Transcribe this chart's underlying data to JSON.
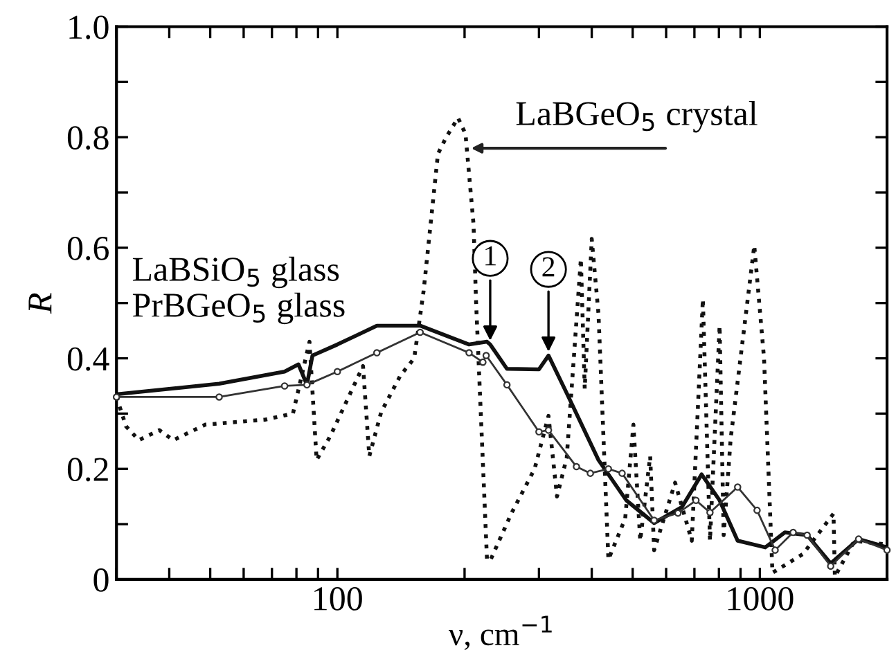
{
  "chart_data": {
    "type": "line",
    "xlabel": "ν, cm$^{−1}$",
    "ylabel": "R",
    "log": "x",
    "grid": false,
    "legend": false,
    "xlim": [
      30,
      2000
    ],
    "ylim": [
      0,
      1.0
    ],
    "xticks": [
      {
        "value": 30,
        "label": null
      },
      {
        "value": 40,
        "label": null
      },
      {
        "value": 50,
        "label": null
      },
      {
        "value": 60,
        "label": null
      },
      {
        "value": 70,
        "label": null
      },
      {
        "value": 80,
        "label": null
      },
      {
        "value": 90,
        "label": null
      },
      100,
      {
        "value": 200,
        "label": null
      },
      {
        "value": 300,
        "label": null
      },
      {
        "value": 400,
        "label": null
      },
      {
        "value": 500,
        "label": null
      },
      {
        "value": 600,
        "label": null
      },
      {
        "value": 700,
        "label": null
      },
      {
        "value": 800,
        "label": null
      },
      {
        "value": 900,
        "label": null
      },
      1000,
      {
        "value": 2000,
        "label": null
      }
    ],
    "yticks": [
      {
        "value": 0,
        "label": "0"
      },
      {
        "value": 0.1,
        "label": null
      },
      0.2,
      {
        "value": 0.3,
        "label": null
      },
      0.4,
      {
        "value": 0.5,
        "label": null
      },
      0.6,
      {
        "value": 0.7,
        "label": null
      },
      0.8,
      {
        "value": 0.9,
        "label": null
      },
      {
        "value": 1.0,
        "label": "1.0"
      }
    ],
    "annotations": [
      "LaBSiO$_{5}$ glass",
      "PrBGeO$_{5}$ glass",
      {
        "text": "LaBGeO$_{5}$ crystal",
        "x": 203,
        "y": 0.78
      },
      {
        "text": "1",
        "x": 230,
        "y": 0.425
      },
      {
        "text": "2",
        "x": 316,
        "y": 0.405
      }
    ],
    "series": [
      {
        "color": "#111111",
        "marker": "none",
        "line_style": "solid",
        "x": [
          30,
          52.5,
          75,
          80.9,
          84.7,
          87.3,
          100,
          124,
          157,
          205,
          226,
          230,
          252,
          300,
          316,
          349,
          415,
          483,
          562,
          654,
          728,
          803,
          886,
          1030,
          1146,
          1294,
          1471,
          1713,
          2000
        ],
        "values": [
          0.335,
          0.354,
          0.376,
          0.389,
          0.352,
          0.405,
          0.425,
          0.459,
          0.459,
          0.425,
          0.43,
          0.425,
          0.381,
          0.38,
          0.405,
          0.337,
          0.216,
          0.143,
          0.102,
          0.131,
          0.19,
          0.143,
          0.07,
          0.058,
          0.085,
          0.08,
          0.029,
          0.073,
          0.058
        ]
      },
      {
        "color": "#333333",
        "marker": "circle",
        "line_style": "solid",
        "x": [
          30,
          52.5,
          75,
          84.7,
          100,
          124,
          157,
          205,
          221,
          225,
          252,
          300,
          316,
          368,
          397,
          438,
          472,
          562,
          640,
          706,
          762,
          886,
          985,
          1087,
          1199,
          1294,
          1471,
          1713,
          2000
        ],
        "values": [
          0.33,
          0.33,
          0.35,
          0.352,
          0.376,
          0.41,
          0.447,
          0.41,
          0.393,
          0.405,
          0.352,
          0.267,
          0.27,
          0.204,
          0.192,
          0.2,
          0.192,
          0.107,
          0.12,
          0.143,
          0.121,
          0.167,
          0.125,
          0.053,
          0.085,
          0.08,
          0.024,
          0.073,
          0.053
        ]
      },
      {
        "color": "#111111",
        "marker": "none",
        "line_style": "dotted",
        "x": [
          30,
          31.6,
          33.9,
          37.9,
          40.9,
          48.7,
          67.4,
          78.5,
          85.9,
          89.3,
          96.3,
          106,
          115,
          119,
          127,
          141,
          152,
          160,
          173,
          181,
          193,
          201,
          210,
          213,
          226,
          230,
          258,
          293,
          316,
          331,
          349,
          377,
          385,
          400,
          415,
          438,
          480,
          502,
          521,
          550,
          562,
          630,
          690,
          733,
          762,
          803,
          821,
          853,
          970,
          1023,
          1071,
          1265,
          1494,
          1505,
          1675,
          2000
        ],
        "values": [
          0.33,
          0.277,
          0.252,
          0.27,
          0.252,
          0.28,
          0.289,
          0.3,
          0.43,
          0.216,
          0.26,
          0.328,
          0.386,
          0.223,
          0.303,
          0.369,
          0.4,
          0.522,
          0.77,
          0.8,
          0.835,
          0.806,
          0.643,
          0.5,
          0.036,
          0.034,
          0.119,
          0.2,
          0.296,
          0.15,
          0.22,
          0.58,
          0.345,
          0.616,
          0.48,
          0.036,
          0.11,
          0.28,
          0.07,
          0.223,
          0.053,
          0.175,
          0.07,
          0.507,
          0.07,
          0.459,
          0.08,
          0.255,
          0.604,
          0.4,
          0.012,
          0.046,
          0.119,
          0.005,
          0.07,
          0.063
        ]
      }
    ]
  }
}
